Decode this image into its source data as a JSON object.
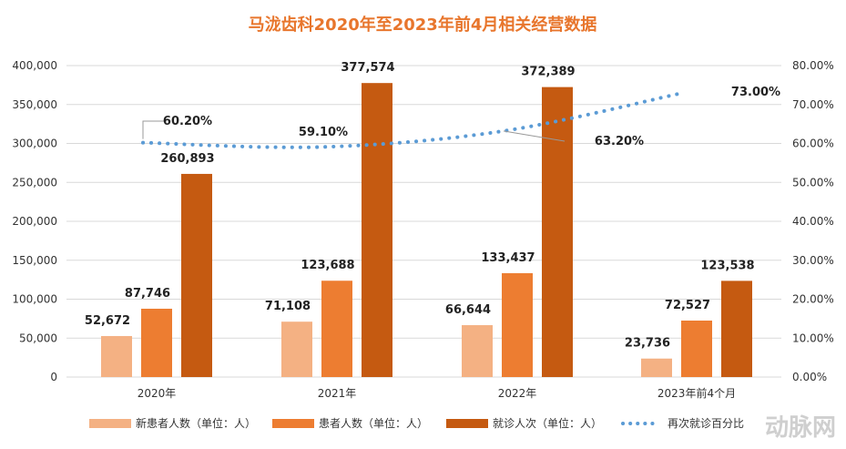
{
  "colors": {
    "title": "#E8762D",
    "new_patients": "#F4B183",
    "patients": "#ED7D31",
    "visits": "#C55A11",
    "repeat_line": "#5B9BD5",
    "grid": "#D9D9D9"
  },
  "watermark": "动脉网",
  "chart_data": {
    "type": "bar",
    "title": "马泷齿科2020年至2023年前4月相关经营数据",
    "categories": [
      "2020年",
      "2021年",
      "2022年",
      "2023年前4个月"
    ],
    "series": [
      {
        "key": "new_patients",
        "name": "新患者人数（单位：人）",
        "type": "bar",
        "axis": "left",
        "values": [
          52672,
          71108,
          66644,
          23736
        ],
        "labels": [
          "52,672",
          "71,108",
          "66,644",
          "23,736"
        ]
      },
      {
        "key": "patients",
        "name": "患者人数（单位：人）",
        "type": "bar",
        "axis": "left",
        "values": [
          87746,
          123688,
          133437,
          72527
        ],
        "labels": [
          "87,746",
          "123,688",
          "133,437",
          "72,527"
        ]
      },
      {
        "key": "visits",
        "name": "就诊人次（单位：人）",
        "type": "bar",
        "axis": "left",
        "values": [
          260893,
          377574,
          372389,
          123538
        ],
        "labels": [
          "260,893",
          "377,574",
          "372,389",
          "123,538"
        ]
      },
      {
        "key": "repeat_line",
        "name": "再次就诊百分比",
        "type": "line",
        "style": "dotted",
        "axis": "right",
        "values": [
          60.2,
          59.1,
          63.2,
          73.0
        ],
        "labels": [
          "60.20%",
          "59.10%",
          "63.20%",
          "73.00%"
        ]
      }
    ],
    "y_left": {
      "min": 0,
      "max": 400000,
      "ticks": [
        0,
        50000,
        100000,
        150000,
        200000,
        250000,
        300000,
        350000,
        400000
      ],
      "tick_labels": [
        "0",
        "50,000",
        "100,000",
        "150,000",
        "200,000",
        "250,000",
        "300,000",
        "350,000",
        "400,000"
      ]
    },
    "y_right": {
      "min": 0,
      "max": 80,
      "ticks": [
        0,
        10,
        20,
        30,
        40,
        50,
        60,
        70,
        80
      ],
      "tick_labels": [
        "0.00%",
        "10.00%",
        "20.00%",
        "30.00%",
        "40.00%",
        "50.00%",
        "60.00%",
        "70.00%",
        "80.00%"
      ]
    },
    "grid": true,
    "legend_position": "bottom"
  }
}
